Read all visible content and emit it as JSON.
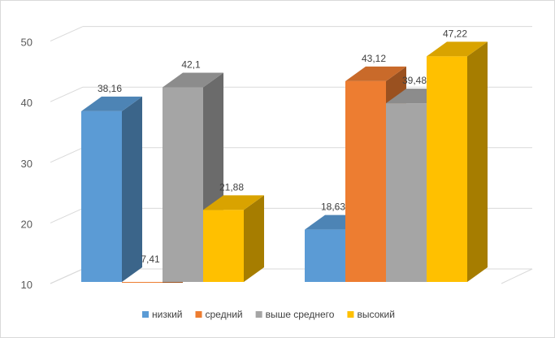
{
  "chart_data": {
    "type": "bar3d",
    "categories": [
      null,
      null
    ],
    "series": [
      {
        "name": "низкий",
        "color": "#5b9bd5",
        "values": [
          38.16,
          18.63
        ],
        "value_labels": [
          "38,16",
          "18,63"
        ]
      },
      {
        "name": "средний",
        "color": "#ed7d31",
        "values": [
          7.41,
          43.12
        ],
        "value_labels": [
          "7,41",
          "43,12"
        ]
      },
      {
        "name": "выше среднего",
        "color": "#a5a5a5",
        "values": [
          42.1,
          39.48
        ],
        "value_labels": [
          "42,1",
          "39,48"
        ]
      },
      {
        "name": "высокий",
        "color": "#ffc000",
        "values": [
          21.88,
          47.22
        ],
        "value_labels": [
          "21,88",
          "47,22"
        ]
      }
    ],
    "ylim": [
      10,
      50
    ],
    "yticks": [
      10,
      20,
      30,
      40,
      50
    ],
    "grid": true,
    "legend": "bottom"
  }
}
